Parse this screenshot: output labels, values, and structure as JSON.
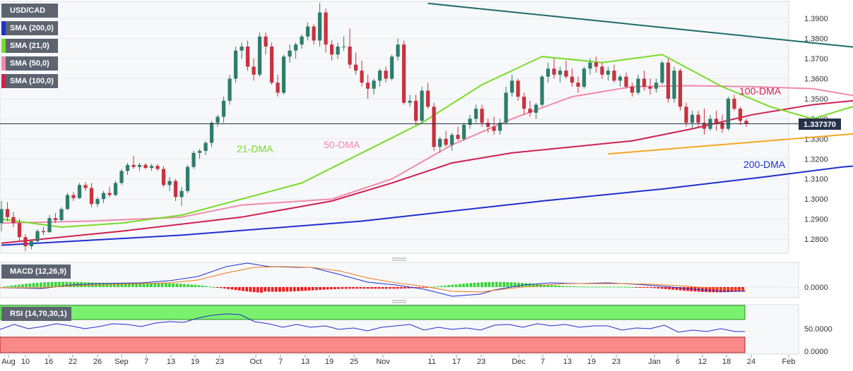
{
  "chart_data": {
    "type": "candlestick",
    "symbol": "USD/CAD",
    "last_price": "1.337370",
    "x_axis_labels": [
      "Aug",
      "10",
      "16",
      "22",
      "26",
      "Sep",
      "7",
      "13",
      "19",
      "23",
      "Oct",
      "7",
      "13",
      "19",
      "25",
      "Nov",
      "11",
      "17",
      "23",
      "Dec",
      "7",
      "13",
      "19",
      "23",
      "Jan",
      "6",
      "12",
      "18",
      "24",
      "Feb"
    ],
    "y_ticks": [
      "1.3900",
      "1.3800",
      "1.3700",
      "1.3600",
      "1.3500",
      "1.3400",
      "1.3300",
      "1.3200",
      "1.3100",
      "1.3000",
      "1.2900",
      "1.2800"
    ],
    "ylim": [
      1.273,
      1.3985
    ],
    "candles": [
      [
        1.288,
        1.299,
        1.284,
        1.295
      ],
      [
        1.295,
        1.2985,
        1.289,
        1.291
      ],
      [
        1.291,
        1.2935,
        1.286,
        1.288
      ],
      [
        1.288,
        1.29,
        1.279,
        1.281
      ],
      [
        1.281,
        1.2825,
        1.274,
        1.2765
      ],
      [
        1.2765,
        1.28,
        1.275,
        1.279
      ],
      [
        1.279,
        1.285,
        1.278,
        1.284
      ],
      [
        1.284,
        1.286,
        1.282,
        1.2835
      ],
      [
        1.2835,
        1.292,
        1.283,
        1.2905
      ],
      [
        1.2905,
        1.293,
        1.288,
        1.2895
      ],
      [
        1.2895,
        1.296,
        1.289,
        1.295
      ],
      [
        1.295,
        1.303,
        1.2945,
        1.302
      ],
      [
        1.302,
        1.3035,
        1.299,
        1.3005
      ],
      [
        1.3005,
        1.308,
        1.3,
        1.307
      ],
      [
        1.307,
        1.3085,
        1.304,
        1.3055
      ],
      [
        1.3055,
        1.308,
        1.296,
        1.2975
      ],
      [
        1.2975,
        1.301,
        1.296,
        1.3
      ],
      [
        1.3,
        1.304,
        1.298,
        1.303
      ],
      [
        1.303,
        1.306,
        1.301,
        1.302
      ],
      [
        1.302,
        1.309,
        1.3015,
        1.308
      ],
      [
        1.308,
        1.315,
        1.307,
        1.314
      ],
      [
        1.314,
        1.318,
        1.312,
        1.317
      ],
      [
        1.317,
        1.3215,
        1.315,
        1.316
      ],
      [
        1.316,
        1.318,
        1.314,
        1.317
      ],
      [
        1.317,
        1.318,
        1.315,
        1.3155
      ],
      [
        1.3155,
        1.3175,
        1.314,
        1.3165
      ],
      [
        1.3165,
        1.3175,
        1.314,
        1.315
      ],
      [
        1.315,
        1.3165,
        1.306,
        1.307
      ],
      [
        1.307,
        1.311,
        1.304,
        1.309
      ],
      [
        1.309,
        1.31,
        1.299,
        1.301
      ],
      [
        1.301,
        1.306,
        1.2965,
        1.304
      ],
      [
        1.304,
        1.317,
        1.303,
        1.316
      ],
      [
        1.316,
        1.324,
        1.315,
        1.323
      ],
      [
        1.323,
        1.325,
        1.32,
        1.324
      ],
      [
        1.324,
        1.329,
        1.322,
        1.328
      ],
      [
        1.328,
        1.339,
        1.326,
        1.338
      ],
      [
        1.338,
        1.342,
        1.336,
        1.341
      ],
      [
        1.341,
        1.351,
        1.338,
        1.349
      ],
      [
        1.349,
        1.362,
        1.347,
        1.36
      ],
      [
        1.36,
        1.376,
        1.358,
        1.374
      ],
      [
        1.374,
        1.378,
        1.37,
        1.376
      ],
      [
        1.376,
        1.379,
        1.364,
        1.366
      ],
      [
        1.366,
        1.37,
        1.359,
        1.362
      ],
      [
        1.362,
        1.383,
        1.361,
        1.381
      ],
      [
        1.381,
        1.383,
        1.372,
        1.376
      ],
      [
        1.376,
        1.378,
        1.357,
        1.358
      ],
      [
        1.358,
        1.362,
        1.351,
        1.353
      ],
      [
        1.353,
        1.372,
        1.352,
        1.371
      ],
      [
        1.371,
        1.377,
        1.368,
        1.374
      ],
      [
        1.374,
        1.378,
        1.37,
        1.377
      ],
      [
        1.377,
        1.382,
        1.375,
        1.381
      ],
      [
        1.381,
        1.388,
        1.379,
        1.386
      ],
      [
        1.386,
        1.387,
        1.377,
        1.379
      ],
      [
        1.379,
        1.3977,
        1.376,
        1.393
      ],
      [
        1.393,
        1.395,
        1.373,
        1.377
      ],
      [
        1.377,
        1.379,
        1.369,
        1.372
      ],
      [
        1.372,
        1.378,
        1.37,
        1.376
      ],
      [
        1.376,
        1.381,
        1.374,
        1.376
      ],
      [
        1.376,
        1.385,
        1.365,
        1.367
      ],
      [
        1.367,
        1.373,
        1.362,
        1.364
      ],
      [
        1.364,
        1.369,
        1.356,
        1.358
      ],
      [
        1.358,
        1.362,
        1.35,
        1.355
      ],
      [
        1.355,
        1.36,
        1.352,
        1.359
      ],
      [
        1.359,
        1.365,
        1.356,
        1.364
      ],
      [
        1.364,
        1.366,
        1.358,
        1.36
      ],
      [
        1.36,
        1.372,
        1.359,
        1.371
      ],
      [
        1.371,
        1.38,
        1.369,
        1.377
      ],
      [
        1.377,
        1.379,
        1.347,
        1.348
      ],
      [
        1.348,
        1.352,
        1.346,
        1.349
      ],
      [
        1.349,
        1.352,
        1.337,
        1.339
      ],
      [
        1.339,
        1.356,
        1.338,
        1.354
      ],
      [
        1.354,
        1.358,
        1.345,
        1.346
      ],
      [
        1.346,
        1.348,
        1.324,
        1.326
      ],
      [
        1.326,
        1.331,
        1.323,
        1.33
      ],
      [
        1.33,
        1.334,
        1.326,
        1.327
      ],
      [
        1.327,
        1.333,
        1.324,
        1.332
      ],
      [
        1.332,
        1.336,
        1.329,
        1.33
      ],
      [
        1.33,
        1.338,
        1.329,
        1.337
      ],
      [
        1.337,
        1.342,
        1.335,
        1.34
      ],
      [
        1.34,
        1.347,
        1.338,
        1.345
      ],
      [
        1.345,
        1.347,
        1.336,
        1.338
      ],
      [
        1.338,
        1.34,
        1.333,
        1.336
      ],
      [
        1.336,
        1.341,
        1.332,
        1.334
      ],
      [
        1.334,
        1.34,
        1.332,
        1.338
      ],
      [
        1.338,
        1.356,
        1.337,
        1.353
      ],
      [
        1.353,
        1.362,
        1.351,
        1.359
      ],
      [
        1.359,
        1.36,
        1.349,
        1.351
      ],
      [
        1.351,
        1.353,
        1.342,
        1.345
      ],
      [
        1.345,
        1.349,
        1.341,
        1.343
      ],
      [
        1.343,
        1.348,
        1.34,
        1.347
      ],
      [
        1.347,
        1.362,
        1.346,
        1.361
      ],
      [
        1.361,
        1.368,
        1.358,
        1.365
      ],
      [
        1.365,
        1.37,
        1.36,
        1.362
      ],
      [
        1.362,
        1.366,
        1.358,
        1.364
      ],
      [
        1.364,
        1.369,
        1.36,
        1.361
      ],
      [
        1.361,
        1.365,
        1.356,
        1.358
      ],
      [
        1.358,
        1.361,
        1.353,
        1.356
      ],
      [
        1.356,
        1.366,
        1.355,
        1.365
      ],
      [
        1.365,
        1.37,
        1.362,
        1.368
      ],
      [
        1.368,
        1.371,
        1.363,
        1.366
      ],
      [
        1.366,
        1.368,
        1.36,
        1.362
      ],
      [
        1.362,
        1.366,
        1.359,
        1.364
      ],
      [
        1.364,
        1.367,
        1.358,
        1.359
      ],
      [
        1.359,
        1.362,
        1.356,
        1.361
      ],
      [
        1.361,
        1.363,
        1.355,
        1.356
      ],
      [
        1.356,
        1.358,
        1.351,
        1.353
      ],
      [
        1.353,
        1.362,
        1.352,
        1.36
      ],
      [
        1.36,
        1.364,
        1.354,
        1.356
      ],
      [
        1.356,
        1.36,
        1.352,
        1.355
      ],
      [
        1.355,
        1.36,
        1.353,
        1.358
      ],
      [
        1.358,
        1.369,
        1.357,
        1.368
      ],
      [
        1.368,
        1.37,
        1.348,
        1.35
      ],
      [
        1.35,
        1.366,
        1.348,
        1.364
      ],
      [
        1.364,
        1.365,
        1.344,
        1.346
      ],
      [
        1.346,
        1.348,
        1.336,
        1.338
      ],
      [
        1.338,
        1.344,
        1.335,
        1.342
      ],
      [
        1.342,
        1.344,
        1.336,
        1.338
      ],
      [
        1.338,
        1.345,
        1.332,
        1.335
      ],
      [
        1.335,
        1.342,
        1.334,
        1.34
      ],
      [
        1.34,
        1.344,
        1.334,
        1.338
      ],
      [
        1.338,
        1.342,
        1.333,
        1.335
      ],
      [
        1.335,
        1.351,
        1.334,
        1.35
      ],
      [
        1.35,
        1.352,
        1.344,
        1.345
      ],
      [
        1.345,
        1.346,
        1.337,
        1.339
      ],
      [
        1.339,
        1.34,
        1.336,
        1.3374
      ]
    ],
    "overlays": [
      {
        "name": "SMA (200,0)",
        "label": "200-DMA",
        "color": "#1f2fd0",
        "points": [
          [
            0,
            1.277
          ],
          [
            30,
            1.282
          ],
          [
            60,
            1.289
          ],
          [
            90,
            1.299
          ],
          [
            110,
            1.305
          ],
          [
            127,
            1.311
          ],
          [
            140,
            1.316
          ],
          [
            153,
            1.319
          ]
        ]
      },
      {
        "name": "SMA (100,0)",
        "label": "100-DMA",
        "color": "#d0204f",
        "points": [
          [
            0,
            1.278
          ],
          [
            20,
            1.284
          ],
          [
            40,
            1.291
          ],
          [
            55,
            1.299
          ],
          [
            65,
            1.308
          ],
          [
            75,
            1.318
          ],
          [
            85,
            1.323
          ],
          [
            95,
            1.326
          ],
          [
            105,
            1.329
          ],
          [
            115,
            1.335
          ],
          [
            125,
            1.342
          ],
          [
            135,
            1.347
          ],
          [
            145,
            1.35
          ],
          [
            152,
            1.352
          ]
        ]
      },
      {
        "name": "SMA (50,0)",
        "label": "50-DMA",
        "color": "#f08aa8",
        "points": [
          [
            0,
            1.288
          ],
          [
            15,
            1.289
          ],
          [
            30,
            1.291
          ],
          [
            40,
            1.297
          ],
          [
            55,
            1.3
          ],
          [
            65,
            1.31
          ],
          [
            75,
            1.327
          ],
          [
            85,
            1.34
          ],
          [
            95,
            1.351
          ],
          [
            105,
            1.356
          ],
          [
            115,
            1.3565
          ],
          [
            125,
            1.356
          ],
          [
            135,
            1.355
          ],
          [
            145,
            1.35
          ],
          [
            152,
            1.349
          ]
        ]
      },
      {
        "name": "SMA (21,0)",
        "label": "21-DMA",
        "color": "#78dc28",
        "points": [
          [
            0,
            1.29
          ],
          [
            10,
            1.286
          ],
          [
            20,
            1.288
          ],
          [
            30,
            1.292
          ],
          [
            40,
            1.3
          ],
          [
            50,
            1.308
          ],
          [
            60,
            1.323
          ],
          [
            70,
            1.338
          ],
          [
            80,
            1.357
          ],
          [
            90,
            1.371
          ],
          [
            100,
            1.368
          ],
          [
            110,
            1.372
          ],
          [
            120,
            1.356
          ],
          [
            128,
            1.346
          ],
          [
            135,
            1.34
          ],
          [
            145,
            1.349
          ],
          [
            155,
            1.357
          ],
          [
            165,
            1.361
          ],
          [
            175,
            1.358
          ],
          [
            182,
            1.352
          ],
          [
            188,
            1.348
          ]
        ]
      },
      {
        "name": "Triangle resistance",
        "color": "#1f6b69",
        "points": [
          [
            71,
            1.3975
          ],
          [
            198,
            1.3585
          ]
        ]
      },
      {
        "name": "Triangle support",
        "color": "#f5a623",
        "points": [
          [
            101,
            1.3225
          ],
          [
            150,
            1.3345
          ]
        ]
      }
    ],
    "macd": {
      "label": "MACD (12,26,9)",
      "ytick": "0.0000"
    },
    "rsi": {
      "label": "RSI (14,70,30,1)",
      "yticks": [
        "50.0000",
        "0.0000"
      ]
    }
  }
}
